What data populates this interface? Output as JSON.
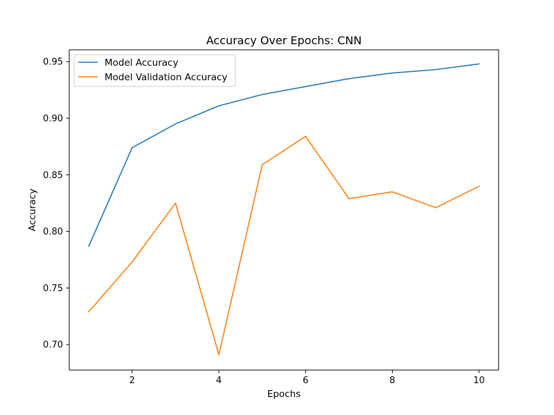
{
  "chart_data": {
    "type": "line",
    "title": "Accuracy Over Epochs: CNN",
    "xlabel": "Epochs",
    "ylabel": "Accuracy",
    "x": [
      1,
      2,
      3,
      4,
      5,
      6,
      7,
      8,
      9,
      10
    ],
    "xlim": [
      0.55,
      10.45
    ],
    "ylim": [
      0.6775,
      0.9605
    ],
    "xticks": [
      2,
      4,
      6,
      8,
      10
    ],
    "xtick_labels": [
      "2",
      "4",
      "6",
      "8",
      "10"
    ],
    "yticks": [
      0.7,
      0.75,
      0.8,
      0.85,
      0.9,
      0.95
    ],
    "ytick_labels": [
      "0.70",
      "0.75",
      "0.80",
      "0.85",
      "0.90",
      "0.95"
    ],
    "grid": false,
    "legend_position": "upper-left",
    "series": [
      {
        "name": "Model Accuracy",
        "color": "#1f77b4",
        "values": [
          0.787,
          0.874,
          0.895,
          0.911,
          0.921,
          0.928,
          0.935,
          0.94,
          0.943,
          0.948
        ]
      },
      {
        "name": "Model Validation Accuracy",
        "color": "#ff7f0e",
        "values": [
          0.729,
          0.773,
          0.825,
          0.691,
          0.859,
          0.884,
          0.829,
          0.835,
          0.821,
          0.84
        ]
      }
    ]
  }
}
